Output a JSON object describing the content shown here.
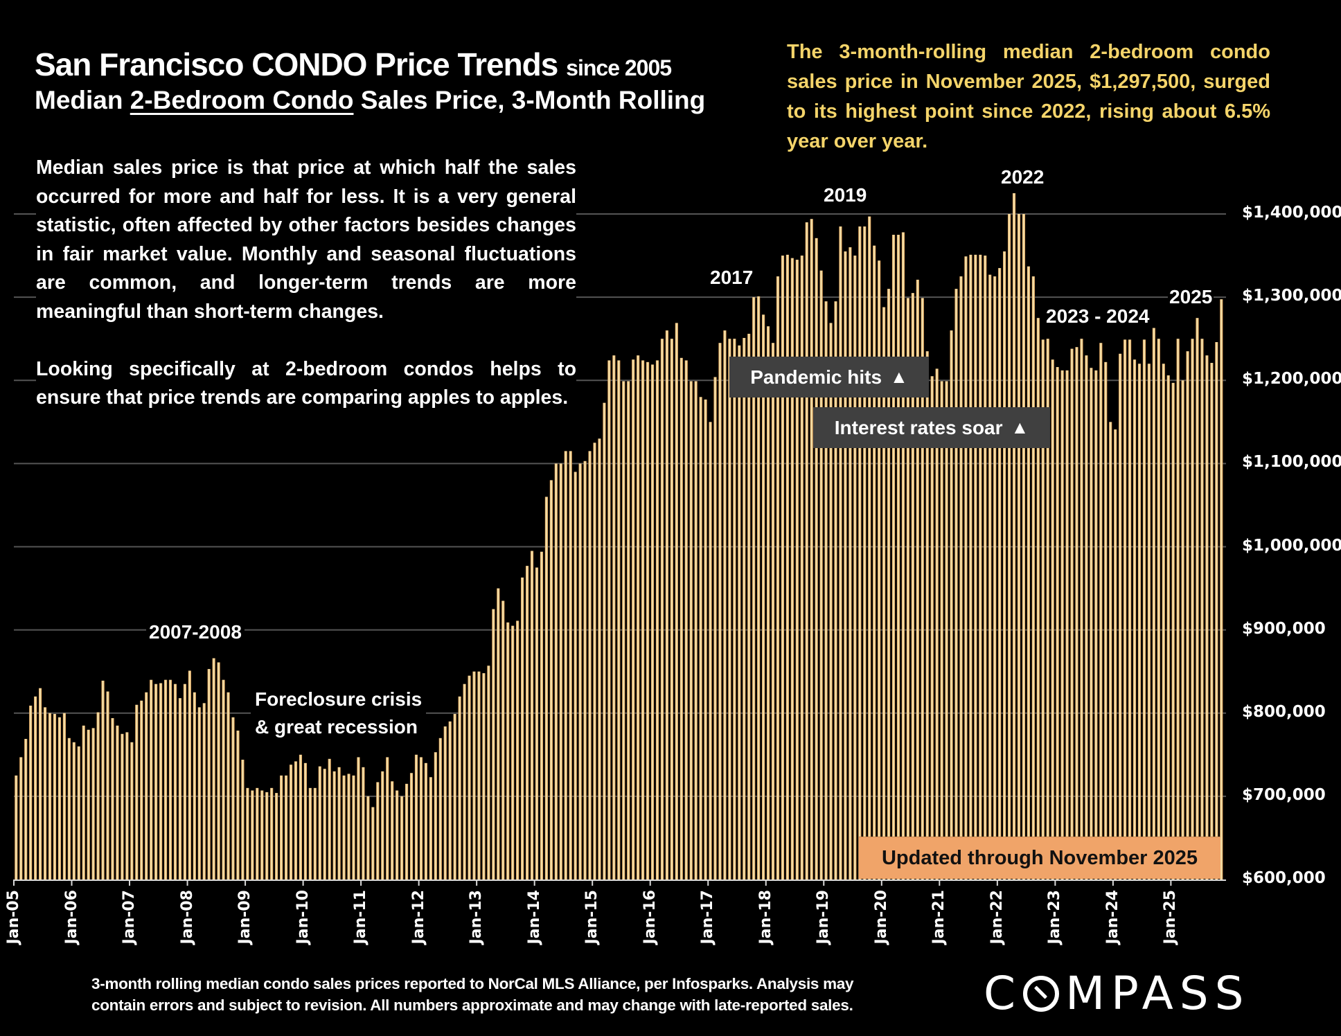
{
  "title": {
    "main": "San Francisco CONDO Price Trends",
    "since": "since 2005",
    "sub_prefix": "Median ",
    "sub_underlined": "2-Bedroom Condo",
    "sub_suffix": " Sales Price, 3-Month Rolling"
  },
  "callout": "The 3-month-rolling median 2-bedroom condo sales price in November 2025, $1,297,500, surged to its highest point since 2022, rising about 6.5% year over year.",
  "description": [
    "Median sales price is that price at which half the sales occurred for more and half for less. It is a very general statistic, often affected by other factors besides changes in fair market value. Monthly and seasonal fluctuations are common, and longer-term trends are more meaningful than short-term changes.",
    "Looking specifically at 2-bedroom condos helps to ensure that price trends are comparing apples to apples."
  ],
  "annotations": {
    "y2007_2008": "2007-2008",
    "foreclosure_line1": "Foreclosure crisis",
    "foreclosure_line2": "& great recession",
    "y2017": "2017",
    "y2019": "2019",
    "y2022": "2022",
    "y2023_2024": "2023 - 2024",
    "y2025": "2025",
    "pandemic": "Pandemic hits",
    "rates": "Interest rates soar",
    "updated": "Updated through November 2025",
    "arrow_icon": "up-triangle"
  },
  "footer": {
    "line1": "3-month rolling median condo sales prices reported to NorCal MLS Alliance, per Infosparks. Analysis may",
    "line2": "contain errors and subject to revision. All numbers approximate and may change with late-reported sales."
  },
  "logo": {
    "before": "C",
    "after": "MPASS",
    "icon": "compass-o-icon"
  },
  "colors": {
    "background": "#000000",
    "bar_fill": "#f2dca4",
    "bar_edge": "#d98a3c",
    "gridline": "#555555",
    "callout_text": "#f4d46a",
    "annotation_box": "#404040",
    "updated_box": "#f0a469"
  },
  "chart_data": {
    "type": "bar",
    "title": "San Francisco CONDO Price Trends since 2005 — Median 2-Bedroom Condo Sales Price, 3-Month Rolling",
    "xlabel": "",
    "ylabel": "",
    "units": "USD thousands",
    "ylim": [
      600,
      1400
    ],
    "y_ticks": [
      600,
      700,
      800,
      900,
      1000,
      1100,
      1200,
      1300,
      1400
    ],
    "y_tick_labels": [
      "$600,000",
      "$700,000",
      "$800,000",
      "$900,000",
      "$1,000,000",
      "$1,100,000",
      "$1,200,000",
      "$1,300,000",
      "$1,400,000"
    ],
    "y_axis_side": "right",
    "grid": true,
    "legend": "none",
    "x_start": "Jan-05",
    "x_end": "Nov-25",
    "x_tick_labels": [
      "Jan-05",
      "Jan-06",
      "Jan-07",
      "Jan-08",
      "Jan-09",
      "Jan-10",
      "Jan-11",
      "Jan-12",
      "Jan-13",
      "Jan-14",
      "Jan-15",
      "Jan-16",
      "Jan-17",
      "Jan-18",
      "Jan-19",
      "Jan-20",
      "Jan-21",
      "Jan-22",
      "Jan-23",
      "Jan-24",
      "Jan-25"
    ],
    "series": [
      {
        "name": "Median 2BR condo price (3-mo rolling, $K)",
        "years": {
          "2005": [
            725,
            747,
            769,
            809,
            820,
            830,
            807,
            800,
            799,
            795,
            800,
            770
          ],
          "2006": [
            765,
            760,
            785,
            780,
            782,
            801,
            839,
            826,
            794,
            785,
            775,
            777
          ],
          "2007": [
            765,
            810,
            815,
            825,
            840,
            835,
            836,
            840,
            840,
            835,
            818,
            835
          ],
          "2008": [
            851,
            825,
            807,
            812,
            853,
            866,
            861,
            840,
            825,
            795,
            779,
            744
          ],
          "2009": [
            710,
            707,
            710,
            707,
            705,
            710,
            704,
            725,
            725,
            738,
            742,
            750
          ],
          "2010": [
            740,
            710,
            710,
            736,
            733,
            745,
            730,
            735,
            725,
            727,
            725,
            747
          ],
          "2011": [
            735,
            700,
            687,
            717,
            730,
            747,
            718,
            707,
            700,
            715,
            728,
            750
          ],
          "2012": [
            747,
            740,
            723,
            753,
            770,
            784,
            790,
            799,
            820,
            835,
            845,
            850
          ],
          "2013": [
            850,
            848,
            857,
            925,
            950,
            935,
            909,
            905,
            911,
            963,
            977,
            995
          ],
          "2014": [
            975,
            994,
            1060,
            1080,
            1100,
            1100,
            1115,
            1115,
            1090,
            1100,
            1103,
            1115
          ],
          "2015": [
            1125,
            1130,
            1173,
            1224,
            1230,
            1224,
            1199,
            1199,
            1225,
            1230,
            1224,
            1222
          ],
          "2016": [
            1219,
            1224,
            1250,
            1260,
            1250,
            1269,
            1227,
            1224,
            1199,
            1199,
            1180,
            1177
          ],
          "2017": [
            1150,
            1204,
            1245,
            1260,
            1250,
            1250,
            1242,
            1251,
            1256,
            1300,
            1301,
            1279
          ],
          "2018": [
            1265,
            1245,
            1325,
            1350,
            1351,
            1347,
            1345,
            1350,
            1390,
            1394,
            1371,
            1332
          ],
          "2019": [
            1295,
            1269,
            1295,
            1385,
            1355,
            1360,
            1350,
            1385,
            1385,
            1397,
            1362,
            1344
          ],
          "2020": [
            1288,
            1310,
            1375,
            1375,
            1378,
            1299,
            1305,
            1321,
            1299,
            1235,
            1205,
            1214
          ],
          "2021": [
            1199,
            1199,
            1260,
            1310,
            1325,
            1349,
            1351,
            1351,
            1351,
            1350,
            1327,
            1325
          ],
          "2022": [
            1335,
            1355,
            1400,
            1425,
            1400,
            1400,
            1337,
            1325,
            1275,
            1249,
            1250,
            1225
          ],
          "2023": [
            1216,
            1212,
            1212,
            1238,
            1240,
            1250,
            1230,
            1215,
            1212,
            1245,
            1222,
            1150
          ],
          "2024": [
            1141,
            1232,
            1249,
            1249,
            1225,
            1220,
            1249,
            1220,
            1263,
            1250,
            1220,
            1206
          ],
          "2025": [
            1197,
            1250,
            1200,
            1235,
            1250,
            1275,
            1250,
            1230,
            1221,
            1246,
            1297.5
          ]
        }
      }
    ],
    "annotations": [
      "2007-2008",
      "Foreclosure crisis & great recession",
      "2017",
      "2019",
      "2022",
      "2023 - 2024",
      "2025",
      "Pandemic hits ▲",
      "Interest rates soar ▲",
      "Updated through November 2025"
    ]
  }
}
